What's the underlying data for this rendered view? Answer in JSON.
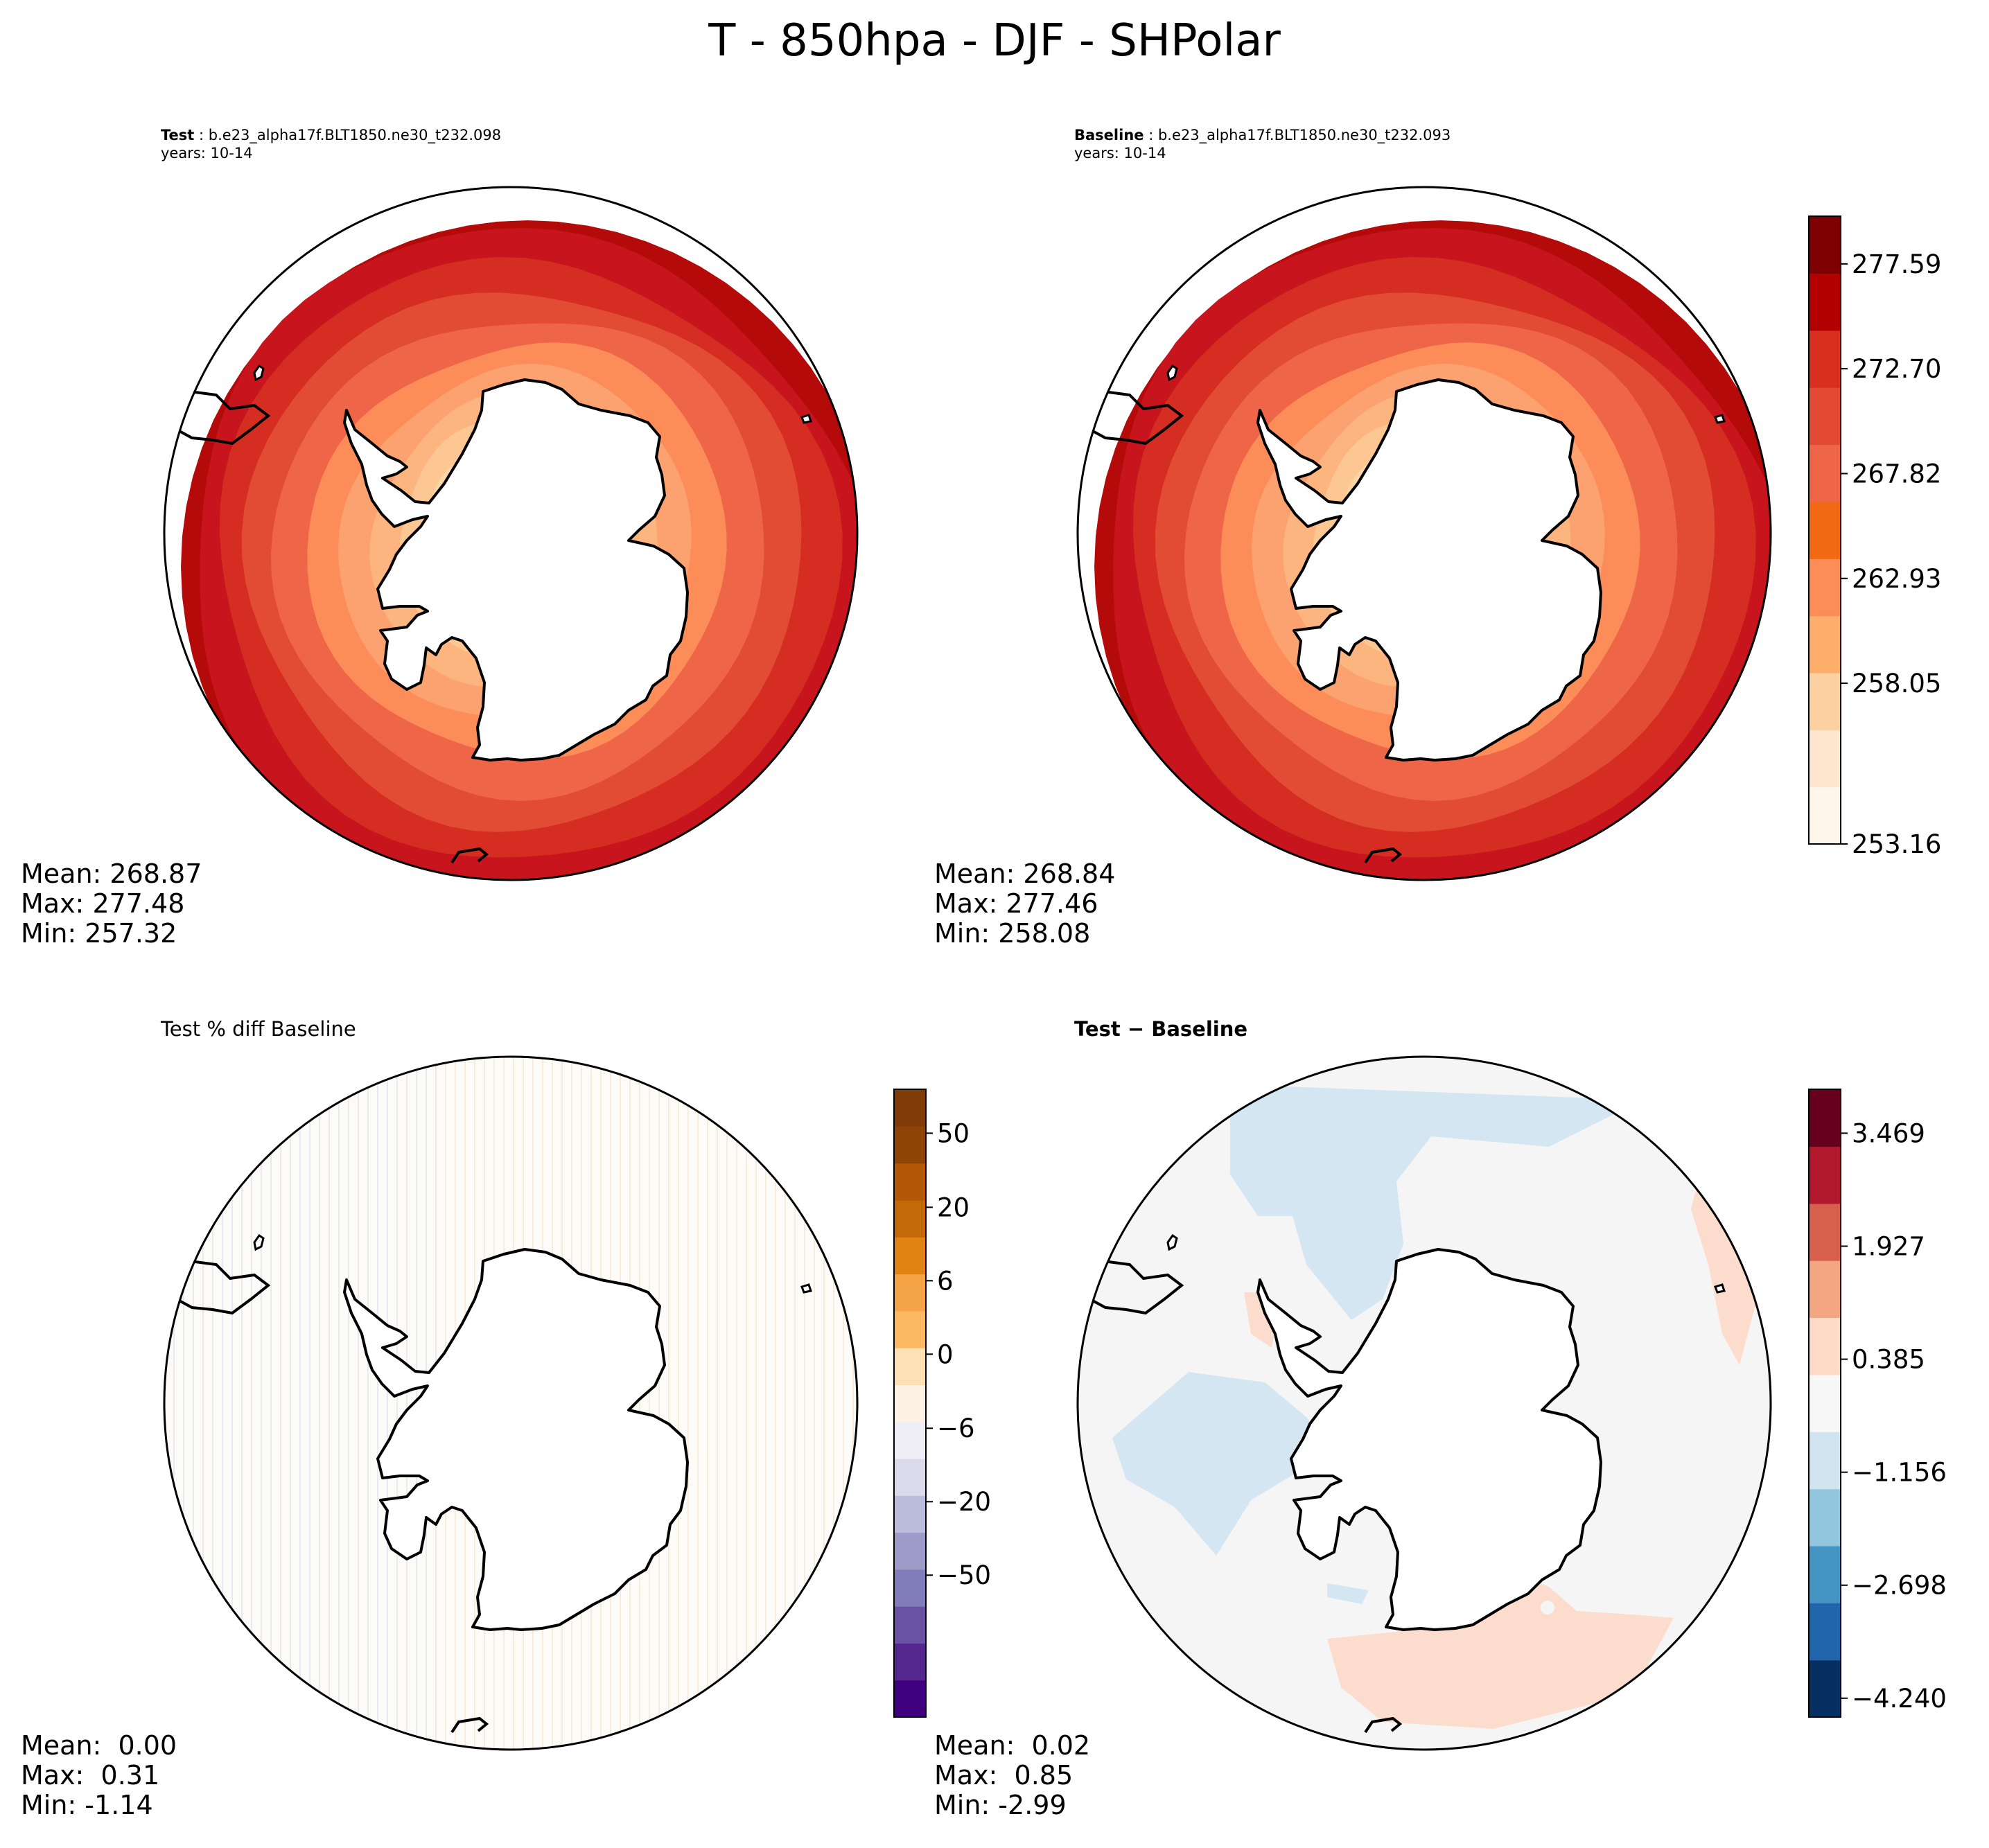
{
  "figure": {
    "title": "T - 850hpa - DJF - SHPolar"
  },
  "panels": {
    "test": {
      "label": "Test",
      "case": "b.e23_alpha17f.BLT1850.ne30_t232.098",
      "years": "years: 10-14",
      "mean": "Mean: 268.87",
      "max": "Max: 277.48",
      "min": "Min: 257.32"
    },
    "baseline": {
      "label": "Baseline",
      "case": "b.e23_alpha17f.BLT1850.ne30_t232.093",
      "years": "years: 10-14",
      "mean": "Mean: 268.84",
      "max": "Max: 277.46",
      "min": "Min: 258.08"
    },
    "pctdiff": {
      "title": "Test % diff Baseline",
      "mean": "Mean:  0.00",
      "max": "Max:  0.31",
      "min": "Min: -1.14"
    },
    "diff": {
      "title": "Test − Baseline",
      "mean": "Mean:  0.02",
      "max": "Max:  0.85",
      "min": "Min: -2.99"
    }
  },
  "chart_data": [
    {
      "type": "heatmap",
      "name": "test_field",
      "projection": "south-polar-stereographic",
      "units": "K",
      "levels_colormap": "Reds",
      "zonal_bands_equator_to_pole": [
        277.5,
        276,
        274,
        272,
        270,
        268,
        266,
        264,
        262,
        260
      ]
    },
    {
      "type": "heatmap",
      "name": "baseline_field",
      "projection": "south-polar-stereographic",
      "units": "K",
      "levels_colormap": "Reds",
      "zonal_bands_equator_to_pole": [
        277.5,
        276,
        274,
        272,
        270,
        268,
        266,
        264,
        262,
        260
      ]
    },
    {
      "type": "heatmap",
      "name": "colorbar_main",
      "tick_labels": [
        "277.59",
        "272.70",
        "267.82",
        "262.93",
        "258.05",
        "253.16"
      ],
      "range": [
        253.16,
        280.03
      ],
      "colors": [
        "#fff5eb",
        "#fee6ce",
        "#fdd0a2",
        "#fdae6b",
        "#fc8d59",
        "#f16913",
        "#ef6548",
        "#e34a33",
        "#d7301f",
        "#b30000",
        "#7f0000"
      ]
    },
    {
      "type": "heatmap",
      "name": "colorbar_pctdiff",
      "tick_labels": [
        "50",
        "20",
        "6",
        "0",
        "−6",
        "−20",
        "−50"
      ],
      "colors": [
        "#3f007d",
        "#54278f",
        "#6a51a3",
        "#807dba",
        "#9e9ac8",
        "#bcbddc",
        "#dadaeb",
        "#efedf5",
        "#fdf2e4",
        "#fee0b6",
        "#fdb863",
        "#f4a347",
        "#e08214",
        "#c26a0a",
        "#b35806",
        "#8e4406",
        "#7f3b08"
      ]
    },
    {
      "type": "heatmap",
      "name": "colorbar_diff",
      "tick_labels": [
        "3.469",
        "1.927",
        "0.385",
        "−1.156",
        "−2.698",
        "−4.240"
      ],
      "range": [
        -4.24,
        4.24
      ],
      "colors": [
        "#053061",
        "#2166ac",
        "#4393c3",
        "#92c5de",
        "#d1e5f0",
        "#f7f7f7",
        "#fddbc7",
        "#f4a582",
        "#d6604d",
        "#b2182b",
        "#67001f"
      ]
    }
  ]
}
